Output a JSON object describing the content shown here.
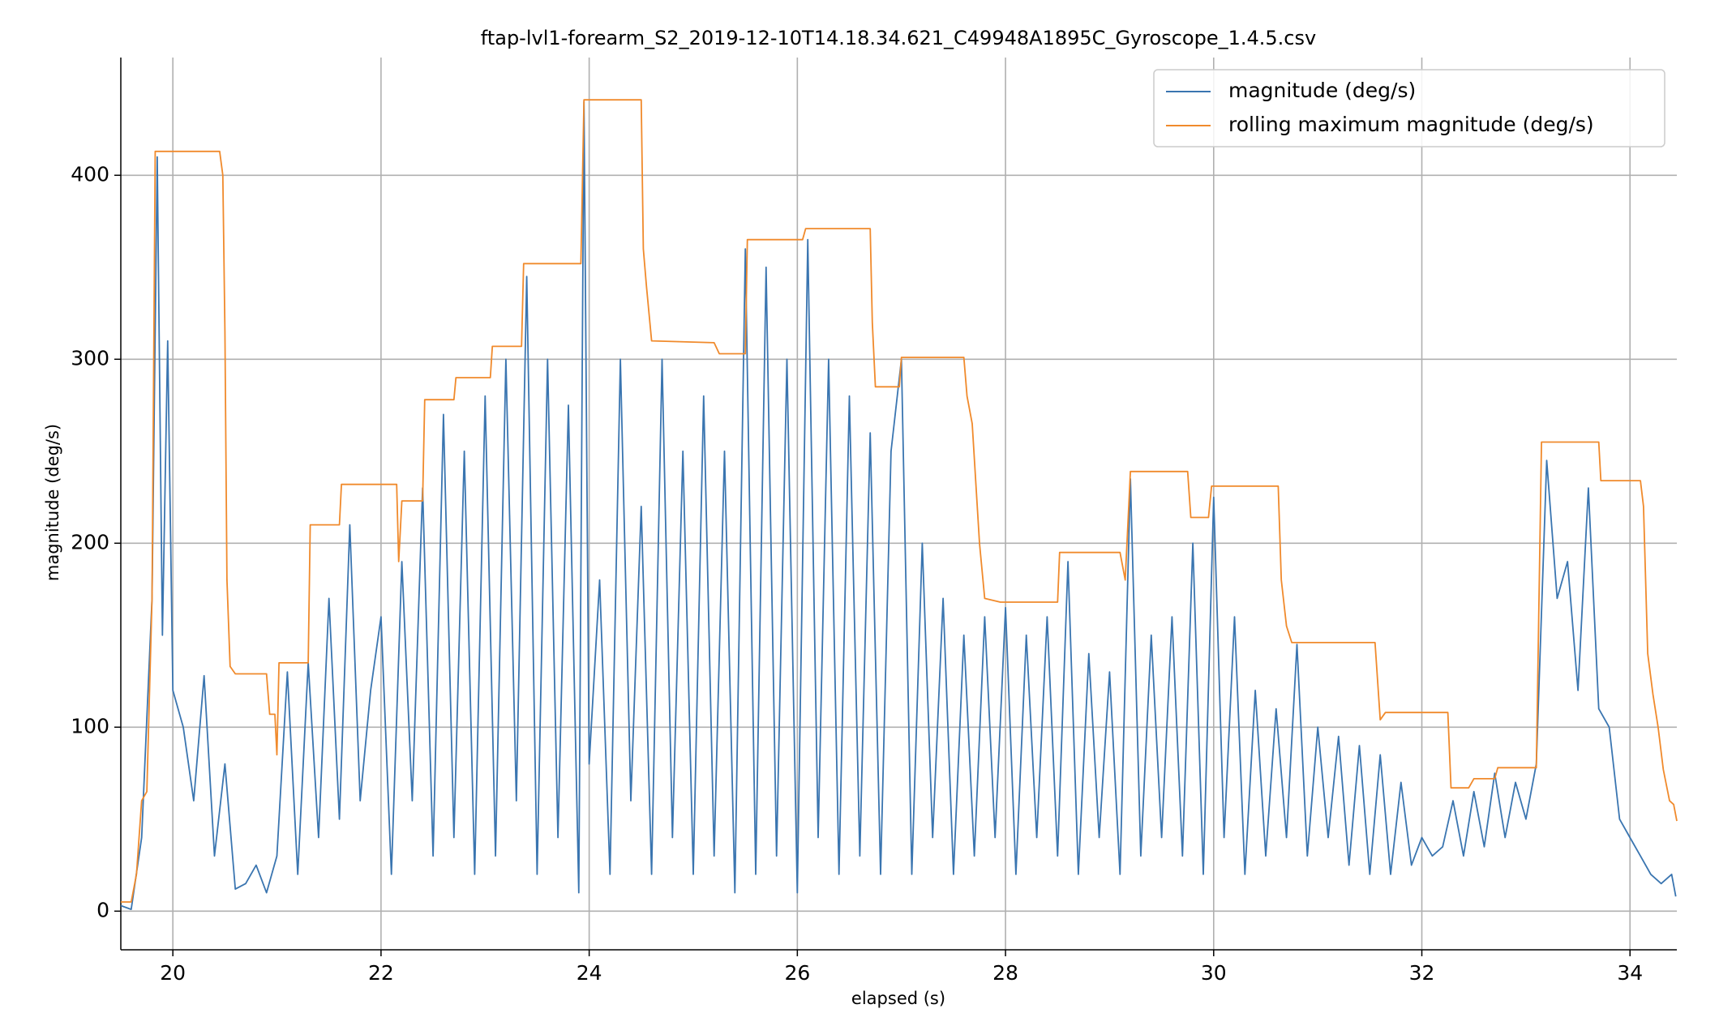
{
  "chart_data": {
    "type": "line",
    "title": "ftap-lvl1-forearm_S2_2019-12-10T14.18.34.621_C49948A1895C_Gyroscope_1.4.5.csv",
    "xlabel": "elapsed (s)",
    "ylabel": "magnitude (deg/s)",
    "xlim": [
      19.5,
      34.45
    ],
    "ylim": [
      -21,
      464
    ],
    "xticks": [
      20,
      22,
      24,
      26,
      28,
      30,
      32,
      34
    ],
    "yticks": [
      0,
      100,
      200,
      300,
      400
    ],
    "grid": true,
    "legend": "upper right",
    "series": [
      {
        "name": "magnitude (deg/s)",
        "color": "#3a75b0",
        "x": [
          19.5,
          19.6,
          19.7,
          19.8,
          19.85,
          19.9,
          19.95,
          20.0,
          20.1,
          20.2,
          20.3,
          20.4,
          20.5,
          20.6,
          20.7,
          20.8,
          20.9,
          21.0,
          21.1,
          21.2,
          21.3,
          21.4,
          21.5,
          21.6,
          21.7,
          21.8,
          21.9,
          22.0,
          22.1,
          22.2,
          22.3,
          22.4,
          22.5,
          22.6,
          22.7,
          22.8,
          22.9,
          23.0,
          23.1,
          23.2,
          23.3,
          23.4,
          23.5,
          23.6,
          23.7,
          23.8,
          23.9,
          23.95,
          24.0,
          24.1,
          24.2,
          24.3,
          24.4,
          24.5,
          24.6,
          24.7,
          24.8,
          24.9,
          25.0,
          25.1,
          25.2,
          25.3,
          25.4,
          25.5,
          25.6,
          25.7,
          25.8,
          25.9,
          26.0,
          26.1,
          26.2,
          26.3,
          26.4,
          26.5,
          26.6,
          26.7,
          26.8,
          26.9,
          27.0,
          27.1,
          27.2,
          27.3,
          27.4,
          27.5,
          27.6,
          27.7,
          27.8,
          27.9,
          28.0,
          28.1,
          28.2,
          28.3,
          28.4,
          28.5,
          28.6,
          28.7,
          28.8,
          28.9,
          29.0,
          29.1,
          29.2,
          29.3,
          29.4,
          29.5,
          29.6,
          29.7,
          29.8,
          29.9,
          30.0,
          30.1,
          30.2,
          30.3,
          30.4,
          30.5,
          30.6,
          30.7,
          30.8,
          30.9,
          31.0,
          31.1,
          31.2,
          31.3,
          31.4,
          31.5,
          31.6,
          31.7,
          31.8,
          31.9,
          32.0,
          32.1,
          32.2,
          32.3,
          32.4,
          32.5,
          32.6,
          32.7,
          32.8,
          32.9,
          33.0,
          33.1,
          33.2,
          33.3,
          33.4,
          33.5,
          33.6,
          33.7,
          33.8,
          33.9,
          34.0,
          34.1,
          34.2,
          34.3,
          34.4,
          34.44
        ],
        "values": [
          3,
          1,
          40,
          170,
          410,
          150,
          310,
          120,
          100,
          60,
          128,
          30,
          80,
          12,
          15,
          25,
          10,
          30,
          130,
          20,
          135,
          40,
          170,
          50,
          210,
          60,
          120,
          160,
          20,
          190,
          60,
          230,
          30,
          270,
          40,
          250,
          20,
          280,
          30,
          300,
          60,
          345,
          20,
          300,
          40,
          275,
          10,
          440,
          80,
          180,
          20,
          300,
          60,
          220,
          20,
          300,
          40,
          250,
          20,
          280,
          30,
          250,
          10,
          360,
          20,
          350,
          30,
          300,
          10,
          365,
          40,
          300,
          20,
          280,
          30,
          260,
          20,
          250,
          300,
          20,
          200,
          40,
          170,
          20,
          150,
          30,
          160,
          40,
          165,
          20,
          150,
          40,
          160,
          30,
          190,
          20,
          140,
          40,
          130,
          20,
          235,
          30,
          150,
          40,
          160,
          30,
          200,
          20,
          225,
          40,
          160,
          20,
          120,
          30,
          110,
          40,
          145,
          30,
          100,
          40,
          95,
          25,
          90,
          20,
          85,
          20,
          70,
          25,
          40,
          30,
          35,
          60,
          30,
          65,
          35,
          75,
          40,
          70,
          50,
          80,
          245,
          170,
          190,
          120,
          230,
          110,
          100,
          50,
          40,
          30,
          20,
          15,
          20,
          8
        ]
      },
      {
        "name": "rolling maximum magnitude (deg/s)",
        "color": "#f08a2c",
        "x": [
          19.5,
          19.6,
          19.65,
          19.7,
          19.75,
          19.8,
          19.83,
          20.45,
          20.48,
          20.5,
          20.52,
          20.55,
          20.6,
          20.9,
          20.93,
          20.98,
          21.0,
          21.02,
          21.3,
          21.32,
          21.6,
          21.62,
          22.15,
          22.17,
          22.2,
          22.4,
          22.42,
          22.7,
          22.72,
          23.05,
          23.07,
          23.35,
          23.37,
          23.92,
          23.95,
          24.5,
          24.52,
          24.55,
          24.6,
          25.2,
          25.25,
          25.5,
          25.52,
          26.05,
          26.08,
          26.7,
          26.72,
          26.75,
          26.98,
          27.0,
          27.6,
          27.63,
          27.68,
          27.75,
          27.8,
          27.95,
          28.5,
          28.52,
          29.1,
          29.15,
          29.2,
          29.75,
          29.78,
          29.95,
          29.98,
          30.62,
          30.65,
          30.7,
          30.75,
          31.55,
          31.6,
          31.65,
          32.25,
          32.28,
          32.45,
          32.5,
          32.7,
          32.73,
          33.1,
          33.15,
          33.7,
          33.72,
          34.1,
          34.13,
          34.17,
          34.22,
          34.27,
          34.32,
          34.38,
          34.42,
          34.45
        ],
        "values": [
          5,
          5,
          20,
          60,
          65,
          170,
          413,
          413,
          400,
          315,
          180,
          133,
          129,
          129,
          107,
          107,
          85,
          135,
          135,
          210,
          210,
          232,
          232,
          190,
          223,
          223,
          278,
          278,
          290,
          290,
          307,
          307,
          352,
          352,
          441,
          441,
          360,
          340,
          310,
          309,
          303,
          303,
          365,
          365,
          371,
          371,
          320,
          285,
          285,
          301,
          301,
          280,
          265,
          200,
          170,
          168,
          168,
          195,
          195,
          180,
          239,
          239,
          214,
          214,
          231,
          231,
          180,
          155,
          146,
          146,
          104,
          108,
          108,
          67,
          67,
          72,
          72,
          78,
          78,
          255,
          255,
          234,
          234,
          220,
          140,
          118,
          100,
          77,
          60,
          58,
          49
        ]
      }
    ]
  }
}
